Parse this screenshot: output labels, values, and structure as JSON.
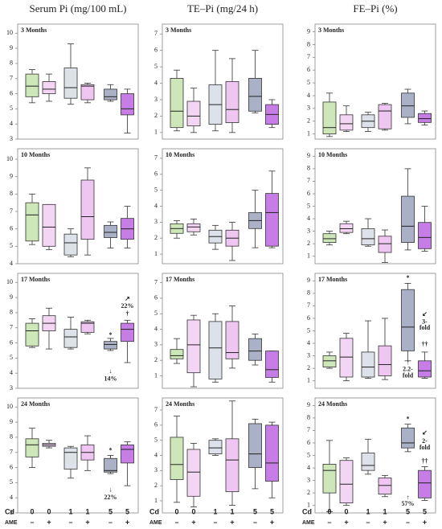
{
  "columns": [
    "Serum Pi (mg/100 mL)",
    "TE–Pi (mg/24 h)",
    "FE–Pi (%)"
  ],
  "x_labels": {
    "cd_label": "Cd",
    "cd": [
      "0",
      "0",
      "1",
      "1",
      "5",
      "5"
    ],
    "ame_label": "AME",
    "ame": [
      "–",
      "+",
      "–",
      "+",
      "–",
      "+"
    ]
  },
  "chart_data": [
    {
      "type": "box",
      "title": "3 Months",
      "ylim": [
        3,
        10.6
      ],
      "yticks": [
        3,
        4,
        5,
        6,
        7,
        8,
        9,
        10
      ],
      "colors": [
        "#cde7b9",
        "#f3d6f3",
        "#dde1ea",
        "#eec6f1",
        "#aab0c5",
        "#c67de6"
      ],
      "boxes": [
        {
          "min": 5.4,
          "q1": 5.8,
          "median": 6.5,
          "q3": 7.3,
          "max": 7.6
        },
        {
          "min": 5.5,
          "q1": 6.0,
          "median": 6.3,
          "q3": 6.8,
          "max": 7.3
        },
        {
          "min": 5.3,
          "q1": 5.7,
          "median": 6.4,
          "q3": 7.7,
          "max": 9.3
        },
        {
          "min": 5.4,
          "q1": 5.6,
          "median": 6.5,
          "q3": 6.6,
          "max": 6.7
        },
        {
          "min": 5.5,
          "q1": 5.6,
          "median": 5.8,
          "q3": 6.3,
          "max": 6.6
        },
        {
          "min": 3.4,
          "q1": 4.6,
          "median": 5.0,
          "q3": 6.0,
          "max": 6.3
        }
      ],
      "annotations": []
    },
    {
      "type": "box",
      "title": "3 Months",
      "ylim": [
        0.6,
        7.6
      ],
      "yticks": [
        1,
        2,
        3,
        4,
        5,
        6,
        7
      ],
      "colors": [
        "#cde7b9",
        "#f3d6f3",
        "#dde1ea",
        "#eec6f1",
        "#aab0c5",
        "#c67de6"
      ],
      "boxes": [
        {
          "min": 1.1,
          "q1": 1.3,
          "median": 2.3,
          "q3": 4.3,
          "max": 4.8
        },
        {
          "min": 1.0,
          "q1": 1.4,
          "median": 2.0,
          "q3": 2.9,
          "max": 3.7
        },
        {
          "min": 1.1,
          "q1": 1.5,
          "median": 2.7,
          "q3": 3.9,
          "max": 6.0
        },
        {
          "min": 1.0,
          "q1": 1.6,
          "median": 2.4,
          "q3": 4.1,
          "max": 5.5
        },
        {
          "min": 2.2,
          "q1": 2.3,
          "median": 3.2,
          "q3": 4.3,
          "max": 6.0
        },
        {
          "min": 1.3,
          "q1": 1.5,
          "median": 2.1,
          "q3": 2.7,
          "max": 3.0
        }
      ],
      "annotations": []
    },
    {
      "type": "box",
      "title": "3 Months",
      "ylim": [
        0.6,
        9.6
      ],
      "yticks": [
        1,
        2,
        3,
        4,
        5,
        6,
        7,
        8,
        9
      ],
      "colors": [
        "#cde7b9",
        "#f3d6f3",
        "#dde1ea",
        "#eec6f1",
        "#aab0c5",
        "#c67de6"
      ],
      "boxes": [
        {
          "min": 0.8,
          "q1": 1.0,
          "median": 1.5,
          "q3": 3.5,
          "max": 4.2
        },
        {
          "min": 1.2,
          "q1": 1.3,
          "median": 1.8,
          "q3": 2.5,
          "max": 3.2
        },
        {
          "min": 1.2,
          "q1": 1.5,
          "median": 2.0,
          "q3": 2.5,
          "max": 2.7
        },
        {
          "min": 1.3,
          "q1": 1.4,
          "median": 2.8,
          "q3": 3.3,
          "max": 3.4
        },
        {
          "min": 1.8,
          "q1": 2.3,
          "median": 3.2,
          "q3": 4.2,
          "max": 4.5
        },
        {
          "min": 1.7,
          "q1": 1.9,
          "median": 2.2,
          "q3": 2.6,
          "max": 2.8
        }
      ],
      "annotations": []
    },
    {
      "type": "box",
      "title": "10 Months",
      "ylim": [
        4,
        10.6
      ],
      "yticks": [
        4,
        5,
        6,
        7,
        8,
        9,
        10
      ],
      "colors": [
        "#cde7b9",
        "#f3d6f3",
        "#dde1ea",
        "#eec6f1",
        "#aab0c5",
        "#c67de6"
      ],
      "boxes": [
        {
          "min": 5.1,
          "q1": 5.3,
          "median": 6.8,
          "q3": 7.5,
          "max": 8.0
        },
        {
          "min": 4.8,
          "q1": 5.0,
          "median": 6.1,
          "q3": 7.4,
          "max": 7.4
        },
        {
          "min": 4.4,
          "q1": 4.5,
          "median": 5.2,
          "q3": 5.7,
          "max": 6.0
        },
        {
          "min": 4.5,
          "q1": 5.4,
          "median": 6.7,
          "q3": 8.8,
          "max": 9.5
        },
        {
          "min": 4.9,
          "q1": 5.5,
          "median": 5.8,
          "q3": 6.2,
          "max": 6.4
        },
        {
          "min": 4.9,
          "q1": 5.4,
          "median": 6.0,
          "q3": 6.6,
          "max": 7.3
        }
      ],
      "annotations": []
    },
    {
      "type": "box",
      "title": "10 Months",
      "ylim": [
        0.4,
        7.6
      ],
      "yticks": [
        1,
        2,
        3,
        4,
        5,
        6,
        7
      ],
      "colors": [
        "#cde7b9",
        "#f3d6f3",
        "#dde1ea",
        "#eec6f1",
        "#aab0c5",
        "#c67de6"
      ],
      "boxes": [
        {
          "min": 2.0,
          "q1": 2.3,
          "median": 2.6,
          "q3": 2.9,
          "max": 3.1
        },
        {
          "min": 2.2,
          "q1": 2.4,
          "median": 2.7,
          "q3": 2.9,
          "max": 3.2
        },
        {
          "min": 1.3,
          "q1": 1.7,
          "median": 2.1,
          "q3": 2.5,
          "max": 2.8
        },
        {
          "min": 0.6,
          "q1": 1.5,
          "median": 2.0,
          "q3": 2.5,
          "max": 3.0
        },
        {
          "min": 1.4,
          "q1": 2.6,
          "median": 3.1,
          "q3": 3.6,
          "max": 5.0
        },
        {
          "min": 1.4,
          "q1": 1.5,
          "median": 3.6,
          "q3": 4.8,
          "max": 6.2
        }
      ],
      "annotations": []
    },
    {
      "type": "box",
      "title": "10 Months",
      "ylim": [
        0.4,
        9.6
      ],
      "yticks": [
        1,
        2,
        3,
        4,
        5,
        6,
        7,
        8,
        9
      ],
      "colors": [
        "#cde7b9",
        "#f3d6f3",
        "#dde1ea",
        "#eec6f1",
        "#aab0c5",
        "#c67de6"
      ],
      "boxes": [
        {
          "min": 1.9,
          "q1": 2.1,
          "median": 2.4,
          "q3": 2.8,
          "max": 3.0
        },
        {
          "min": 2.8,
          "q1": 2.9,
          "median": 3.2,
          "q3": 3.6,
          "max": 3.8
        },
        {
          "min": 1.8,
          "q1": 1.9,
          "median": 2.4,
          "q3": 3.2,
          "max": 4.0
        },
        {
          "min": 0.5,
          "q1": 1.3,
          "median": 2.0,
          "q3": 2.6,
          "max": 3.1
        },
        {
          "min": 1.5,
          "q1": 2.1,
          "median": 3.4,
          "q3": 5.8,
          "max": 8.0
        },
        {
          "min": 1.4,
          "q1": 1.6,
          "median": 2.5,
          "q3": 3.7,
          "max": 5.0
        }
      ],
      "annotations": []
    },
    {
      "type": "box",
      "title": "17 Months",
      "ylim": [
        3,
        10.6
      ],
      "yticks": [
        3,
        4,
        5,
        6,
        7,
        8,
        9,
        10
      ],
      "colors": [
        "#cde7b9",
        "#f3d6f3",
        "#dde1ea",
        "#eec6f1",
        "#aab0c5",
        "#c67de6"
      ],
      "boxes": [
        {
          "min": 5.7,
          "q1": 5.8,
          "median": 6.8,
          "q3": 7.3,
          "max": 7.6
        },
        {
          "min": 5.6,
          "q1": 6.8,
          "median": 7.3,
          "q3": 7.8,
          "max": 8.3
        },
        {
          "min": 5.6,
          "q1": 5.7,
          "median": 6.4,
          "q3": 6.9,
          "max": 7.7
        },
        {
          "min": 6.6,
          "q1": 6.7,
          "median": 7.3,
          "q3": 7.4,
          "max": 7.5
        },
        {
          "min": 5.5,
          "q1": 5.6,
          "median": 5.9,
          "q3": 6.1,
          "max": 6.3
        },
        {
          "min": 4.7,
          "q1": 6.1,
          "median": 6.9,
          "q3": 7.3,
          "max": 7.5
        }
      ],
      "annotations": [
        {
          "text": "*",
          "box": 4,
          "y": 6.5,
          "color": "#222"
        },
        {
          "text": "†",
          "box": 5,
          "y": 7.9,
          "color": "#222"
        },
        {
          "text": "↗",
          "box": 5,
          "y": 8.9,
          "color": "#3a7a2a"
        },
        {
          "text": "22%",
          "box": 5,
          "y": 8.4,
          "color": "#3a7a2a"
        },
        {
          "text": "↓",
          "box": 4,
          "y": 4.1,
          "color": "#d42020"
        },
        {
          "text": "14%",
          "box": 4,
          "y": 3.6,
          "color": "#d42020"
        }
      ]
    },
    {
      "type": "box",
      "title": "17 Months",
      "ylim": [
        0.2,
        7.6
      ],
      "yticks": [
        1,
        2,
        3,
        4,
        5,
        6,
        7
      ],
      "colors": [
        "#cde7b9",
        "#f3d6f3",
        "#dde1ea",
        "#eec6f1",
        "#aab0c5",
        "#c67de6"
      ],
      "boxes": [
        {
          "min": 1.8,
          "q1": 2.1,
          "median": 2.3,
          "q3": 2.7,
          "max": 3.4
        },
        {
          "min": 0.3,
          "q1": 1.2,
          "median": 3.0,
          "q3": 4.6,
          "max": 4.9
        },
        {
          "min": 0.6,
          "q1": 0.8,
          "median": 2.8,
          "q3": 4.5,
          "max": 5.0
        },
        {
          "min": 1.5,
          "q1": 2.1,
          "median": 2.5,
          "q3": 4.5,
          "max": 5.5
        },
        {
          "min": 1.7,
          "q1": 2.0,
          "median": 2.6,
          "q3": 3.4,
          "max": 3.7
        },
        {
          "min": 0.6,
          "q1": 0.9,
          "median": 1.4,
          "q3": 2.6,
          "max": 2.6
        }
      ],
      "annotations": []
    },
    {
      "type": "box",
      "title": "17 Months",
      "ylim": [
        0.4,
        9.6
      ],
      "yticks": [
        1,
        2,
        3,
        4,
        5,
        6,
        7,
        8,
        9
      ],
      "colors": [
        "#cde7b9",
        "#f3d6f3",
        "#dde1ea",
        "#eec6f1",
        "#aab0c5",
        "#c67de6"
      ],
      "boxes": [
        {
          "min": 2.0,
          "q1": 2.1,
          "median": 2.6,
          "q3": 3.0,
          "max": 3.3
        },
        {
          "min": 1.0,
          "q1": 1.3,
          "median": 2.9,
          "q3": 4.4,
          "max": 4.8
        },
        {
          "min": 1.2,
          "q1": 1.3,
          "median": 2.1,
          "q3": 3.3,
          "max": 5.8
        },
        {
          "min": 1.1,
          "q1": 1.4,
          "median": 2.3,
          "q3": 3.8,
          "max": 6.0
        },
        {
          "min": 2.6,
          "q1": 3.4,
          "median": 5.3,
          "q3": 8.3,
          "max": 8.8
        },
        {
          "min": 1.2,
          "q1": 1.3,
          "median": 1.8,
          "q3": 2.6,
          "max": 3.3
        }
      ],
      "annotations": [
        {
          "text": "*",
          "box": 4,
          "y": 9.2,
          "color": "#222"
        },
        {
          "text": "††",
          "box": 5,
          "y": 3.9,
          "color": "#222"
        },
        {
          "text": "↙",
          "box": 5,
          "y": 6.3,
          "color": "#3a7a2a"
        },
        {
          "text": "3-",
          "box": 5,
          "y": 5.7,
          "color": "#3a7a2a"
        },
        {
          "text": "fold",
          "box": 5,
          "y": 5.2,
          "color": "#3a7a2a"
        },
        {
          "text": "↑",
          "box": 4,
          "y": 2.4,
          "color": "#d42020"
        },
        {
          "text": "2.2-",
          "box": 4,
          "y": 1.9,
          "color": "#d42020"
        },
        {
          "text": "fold",
          "box": 4,
          "y": 1.4,
          "color": "#d42020"
        }
      ]
    },
    {
      "type": "box",
      "title": "24 Months",
      "ylim": [
        3,
        10.6
      ],
      "yticks": [
        3,
        4,
        5,
        6,
        7,
        8,
        9,
        10
      ],
      "colors": [
        "#cde7b9",
        "#f3d6f3",
        "#dde1ea",
        "#eec6f1",
        "#aab0c5",
        "#c67de6"
      ],
      "boxes": [
        {
          "min": 6.0,
          "q1": 6.7,
          "median": 7.5,
          "q3": 7.9,
          "max": 8.6
        },
        {
          "min": 7.3,
          "q1": 7.4,
          "median": 7.5,
          "q3": 7.6,
          "max": 7.8
        },
        {
          "min": 5.3,
          "q1": 5.9,
          "median": 7.0,
          "q3": 7.3,
          "max": 7.4
        },
        {
          "min": 5.8,
          "q1": 6.5,
          "median": 7.0,
          "q3": 7.5,
          "max": 8.1
        },
        {
          "min": 5.6,
          "q1": 5.7,
          "median": 5.8,
          "q3": 6.6,
          "max": 6.8
        },
        {
          "min": 4.8,
          "q1": 6.3,
          "median": 7.2,
          "q3": 7.5,
          "max": 7.7
        }
      ],
      "annotations": [
        {
          "text": "*",
          "box": 4,
          "y": 7.1,
          "color": "#222"
        },
        {
          "text": "↓",
          "box": 4,
          "y": 4.5,
          "color": "#d42020"
        },
        {
          "text": "22%",
          "box": 4,
          "y": 4.0,
          "color": "#d42020"
        }
      ]
    },
    {
      "type": "box",
      "title": "24 Months",
      "ylim": [
        0.2,
        7.8
      ],
      "yticks": [
        1,
        2,
        3,
        4,
        5,
        6,
        7
      ],
      "colors": [
        "#cde7b9",
        "#f3d6f3",
        "#dde1ea",
        "#eec6f1",
        "#aab0c5",
        "#c67de6"
      ],
      "boxes": [
        {
          "min": 0.9,
          "q1": 2.4,
          "median": 3.4,
          "q3": 5.2,
          "max": 6.6
        },
        {
          "min": 0.6,
          "q1": 1.3,
          "median": 2.9,
          "q3": 4.4,
          "max": 4.8
        },
        {
          "min": 4.0,
          "q1": 4.1,
          "median": 4.5,
          "q3": 5.0,
          "max": 5.1
        },
        {
          "min": 0.7,
          "q1": 1.6,
          "median": 3.7,
          "q3": 5.1,
          "max": 7.6
        },
        {
          "min": 1.8,
          "q1": 3.2,
          "median": 4.1,
          "q3": 6.1,
          "max": 6.4
        },
        {
          "min": 1.2,
          "q1": 2.3,
          "median": 3.5,
          "q3": 6.0,
          "max": 6.2
        }
      ],
      "annotations": []
    },
    {
      "type": "box",
      "title": "24 Months",
      "ylim": [
        0.4,
        9.6
      ],
      "yticks": [
        1,
        2,
        3,
        4,
        5,
        6,
        7,
        8,
        9
      ],
      "colors": [
        "#cde7b9",
        "#f3d6f3",
        "#dde1ea",
        "#eec6f1",
        "#aab0c5",
        "#c67de6"
      ],
      "boxes": [
        {
          "min": 0.5,
          "q1": 2.0,
          "median": 3.8,
          "q3": 4.3,
          "max": 6.2
        },
        {
          "min": 1.0,
          "q1": 1.2,
          "median": 2.7,
          "q3": 4.6,
          "max": 4.8
        },
        {
          "min": 3.5,
          "q1": 3.8,
          "median": 4.2,
          "q3": 5.2,
          "max": 6.3
        },
        {
          "min": 1.7,
          "q1": 1.9,
          "median": 2.6,
          "q3": 3.2,
          "max": 3.4
        },
        {
          "min": 5.3,
          "q1": 5.6,
          "median": 6.0,
          "q3": 7.2,
          "max": 7.5
        },
        {
          "min": 1.4,
          "q1": 1.6,
          "median": 2.8,
          "q3": 3.8,
          "max": 4.1
        }
      ],
      "annotations": [
        {
          "text": "*",
          "box": 4,
          "y": 7.9,
          "color": "#222"
        },
        {
          "text": "††",
          "box": 5,
          "y": 4.5,
          "color": "#222"
        },
        {
          "text": "↙",
          "box": 5,
          "y": 6.8,
          "color": "#3a7a2a"
        },
        {
          "text": "2-",
          "box": 5,
          "y": 6.1,
          "color": "#3a7a2a"
        },
        {
          "text": "fold",
          "box": 5,
          "y": 5.6,
          "color": "#3a7a2a"
        },
        {
          "text": "↑",
          "box": 4,
          "y": 1.6,
          "color": "#d42020"
        },
        {
          "text": "57%",
          "box": 4,
          "y": 1.1,
          "color": "#d42020"
        }
      ]
    }
  ]
}
